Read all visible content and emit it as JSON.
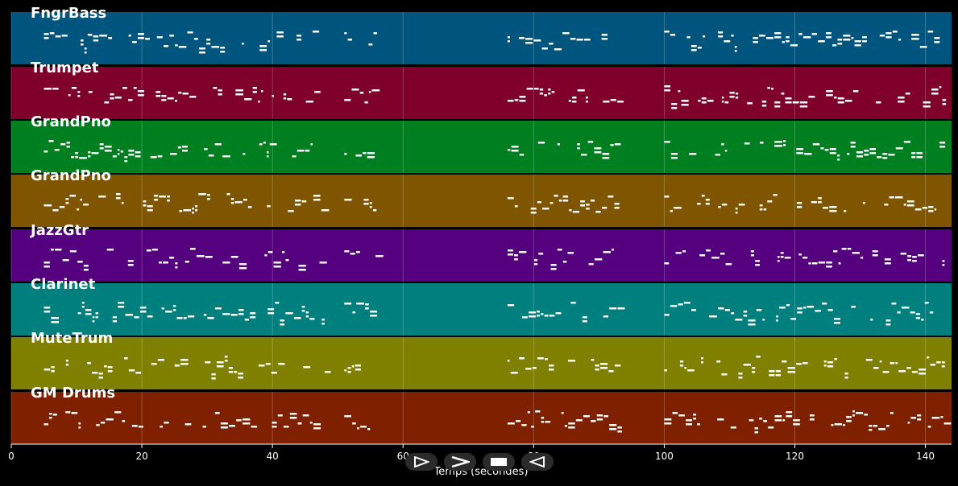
{
  "tracks": [
    {
      "name": "FngrBass",
      "color": "#00557f"
    },
    {
      "name": "Trumpet",
      "color": "#7f002a"
    },
    {
      "name": "GrandPno",
      "color": "#007f20"
    },
    {
      "name": "GrandPno",
      "color": "#7f5500"
    },
    {
      "name": "JazzGtr",
      "color": "#55007f"
    },
    {
      "name": "Clarinet",
      "color": "#007f7f"
    },
    {
      "name": "MuteTrum",
      "color": "#7f7f00"
    },
    {
      "name": "GM Drums",
      "color": "#7f2000"
    }
  ],
  "xaxis": {
    "label": "Temps (secondes)",
    "ticks": [
      "0",
      "20",
      "40",
      "60",
      "80",
      "100",
      "120",
      "140"
    ],
    "range": [
      0,
      144
    ]
  },
  "controls": [
    {
      "name": "play-button",
      "icon": "play-icon"
    },
    {
      "name": "fast-forward-button",
      "icon": "fast-forward-icon"
    },
    {
      "name": "stop-button",
      "icon": "stop-icon"
    },
    {
      "name": "rewind-button",
      "icon": "rewind-icon"
    }
  ],
  "note_color": "#ffffff"
}
